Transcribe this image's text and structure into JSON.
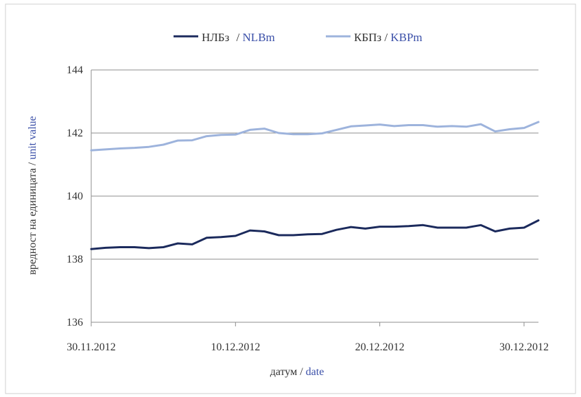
{
  "legend": {
    "nlb_bg": "НЛБз",
    "nlb_sep": " / ",
    "nlb_en": "NLBm",
    "kbp_bg": "КБПз",
    "kbp_sep": " / ",
    "kbp_en": "KBPm"
  },
  "axes": {
    "y_label_bg": "вредност на единицата / ",
    "y_label_en": "unit value",
    "x_label_bg": "датум / ",
    "x_label_en": "date"
  },
  "colors": {
    "nlb": "#1b2a5c",
    "kbp": "#9db3dc",
    "grid": "#8c8c8c",
    "axis_text": "#333333",
    "accent_text": "#3a4fa8",
    "border": "#cfcfcf"
  },
  "chart_data": {
    "type": "line",
    "ylim": [
      136,
      144
    ],
    "yticks": [
      "136",
      "138",
      "140",
      "142",
      "144"
    ],
    "x_tick_labels": [
      "30.11.2012",
      "10.12.2012",
      "20.12.2012",
      "30.12.2012"
    ],
    "x_tick_days": [
      0,
      10,
      20,
      30
    ],
    "x_days": [
      0,
      1,
      2,
      3,
      4,
      5,
      6,
      7,
      8,
      9,
      10,
      11,
      12,
      13,
      14,
      15,
      16,
      17,
      18,
      19,
      20,
      21,
      22,
      23,
      24,
      25,
      26,
      27,
      28,
      29,
      30,
      31
    ],
    "xlim": [
      0,
      31
    ],
    "grid": true,
    "legend_position": "top",
    "series": [
      {
        "name": "НЛБз / NLBm",
        "key": "nlb",
        "values": [
          138.32,
          138.36,
          138.38,
          138.38,
          138.35,
          138.38,
          138.5,
          138.47,
          138.68,
          138.7,
          138.74,
          138.91,
          138.88,
          138.76,
          138.76,
          138.79,
          138.8,
          138.93,
          139.02,
          138.97,
          139.03,
          139.03,
          139.05,
          139.08,
          139.0,
          139.0,
          139.0,
          139.08,
          138.88,
          138.97,
          139.0,
          139.23
        ]
      },
      {
        "name": "КБПз / KBPm",
        "key": "kbp",
        "values": [
          141.45,
          141.48,
          141.51,
          141.53,
          141.56,
          141.63,
          141.76,
          141.77,
          141.9,
          141.94,
          141.95,
          142.1,
          142.14,
          142.0,
          141.96,
          141.96,
          141.99,
          142.1,
          142.21,
          142.24,
          142.27,
          142.22,
          142.25,
          142.25,
          142.2,
          142.22,
          142.2,
          142.28,
          142.05,
          142.12,
          142.16,
          142.35
        ]
      }
    ]
  }
}
